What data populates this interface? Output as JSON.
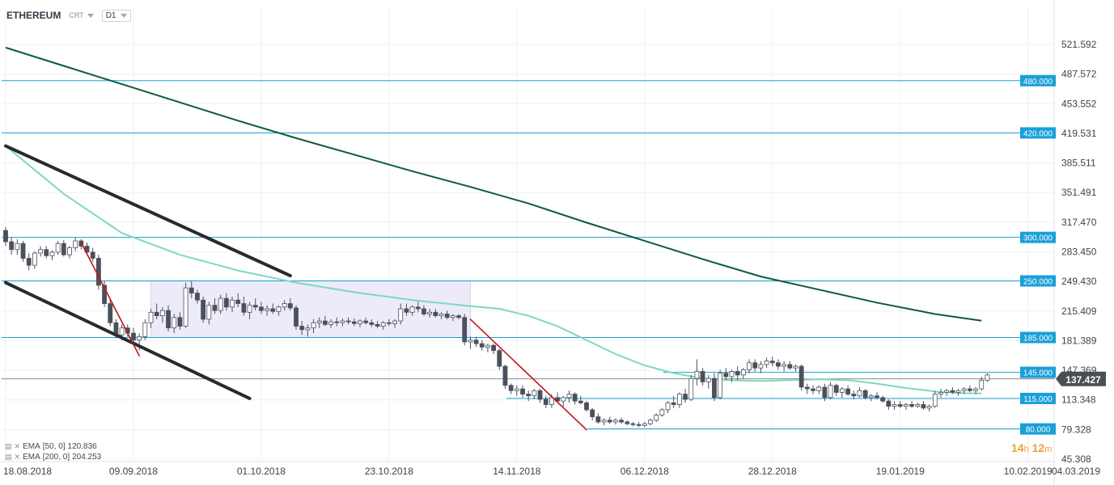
{
  "header": {
    "symbol": "ETHEREUM",
    "instrument_type": "CRT",
    "timeframe": "D1"
  },
  "countdown": {
    "hours": "14",
    "hours_unit": "h",
    "minutes": "12",
    "minutes_unit": "m"
  },
  "legend": [
    {
      "label": "EMA",
      "params": "[50, 0]",
      "value": "120.836"
    },
    {
      "label": "EMA",
      "params": "[200, 0]",
      "value": "204.253"
    }
  ],
  "chart_data": {
    "type": "candlestick",
    "title": "",
    "start_date": "2018-08-18",
    "x_ticks": [
      "18.08.2018",
      "09.09.2018",
      "01.10.2018",
      "23.10.2018",
      "14.11.2018",
      "06.12.2018",
      "28.12.2018",
      "19.01.2019",
      "10.02.2019",
      "04.03.2019"
    ],
    "y_ticks": [
      521.592,
      487.572,
      453.552,
      419.531,
      385.511,
      351.491,
      317.47,
      283.45,
      249.43,
      215.409,
      181.389,
      147.369,
      113.348,
      79.328,
      45.308
    ],
    "ylim": [
      45.308,
      555.0
    ],
    "current_price": "137.427",
    "current_price_color": "#4a4f56",
    "level_color": "#1a9fd8",
    "levels": [
      {
        "value": 480,
        "label": "480.000"
      },
      {
        "value": 420,
        "label": "420.000"
      },
      {
        "value": 300,
        "label": "300.000"
      },
      {
        "value": 250,
        "label": "250.000"
      },
      {
        "value": 185,
        "label": "185.000"
      },
      {
        "value": 145,
        "label": "145.000"
      },
      {
        "value": 115,
        "label": "115.000"
      },
      {
        "value": 80,
        "label": "80.000"
      }
    ],
    "ema50_color": "#7ed8bf",
    "ema200_color": "#0f5a3a",
    "ema50": [
      [
        0,
        405
      ],
      [
        10,
        350
      ],
      [
        20,
        305
      ],
      [
        30,
        280
      ],
      [
        40,
        262
      ],
      [
        50,
        248
      ],
      [
        60,
        237
      ],
      [
        70,
        228
      ],
      [
        80,
        221
      ],
      [
        85,
        218
      ],
      [
        90,
        210
      ],
      [
        95,
        198
      ],
      [
        100,
        182
      ],
      [
        105,
        166
      ],
      [
        110,
        153
      ],
      [
        115,
        144
      ],
      [
        120,
        138
      ],
      [
        125,
        136
      ],
      [
        130,
        135
      ],
      [
        135,
        136
      ],
      [
        140,
        137
      ],
      [
        145,
        136
      ],
      [
        150,
        132
      ],
      [
        155,
        127
      ],
      [
        160,
        123
      ],
      [
        165,
        121
      ],
      [
        168,
        120.8
      ]
    ],
    "ema200": [
      [
        0,
        518
      ],
      [
        10,
        497
      ],
      [
        20,
        476
      ],
      [
        30,
        455
      ],
      [
        40,
        434
      ],
      [
        50,
        414
      ],
      [
        60,
        395
      ],
      [
        70,
        376
      ],
      [
        80,
        358
      ],
      [
        90,
        339
      ],
      [
        100,
        317
      ],
      [
        110,
        296
      ],
      [
        120,
        275
      ],
      [
        130,
        255
      ],
      [
        140,
        240
      ],
      [
        150,
        225
      ],
      [
        160,
        212
      ],
      [
        168,
        204.3
      ]
    ],
    "support_zone": {
      "x_start": 25,
      "x_end": 80,
      "low": 185,
      "high": 250
    },
    "trendlines": [
      {
        "color": "#262b30",
        "width": 4,
        "points": [
          [
            0,
            405
          ],
          [
            49,
            256
          ]
        ]
      },
      {
        "color": "#262b30",
        "width": 4,
        "points": [
          [
            0,
            248
          ],
          [
            42,
            115
          ]
        ]
      },
      {
        "color": "#c0151c",
        "width": 1.6,
        "points": [
          [
            13,
            294
          ],
          [
            23,
            164
          ]
        ]
      },
      {
        "color": "#c0151c",
        "width": 1.6,
        "points": [
          [
            80,
            206
          ],
          [
            100,
            79
          ]
        ]
      }
    ],
    "ohlc": [
      [
        0,
        308,
        312,
        290,
        295
      ],
      [
        1,
        295,
        300,
        280,
        286
      ],
      [
        2,
        286,
        298,
        280,
        293
      ],
      [
        3,
        293,
        296,
        272,
        276
      ],
      [
        4,
        276,
        282,
        262,
        268
      ],
      [
        5,
        268,
        284,
        264,
        282
      ],
      [
        6,
        282,
        290,
        278,
        286
      ],
      [
        7,
        286,
        290,
        276,
        279
      ],
      [
        8,
        279,
        285,
        274,
        283
      ],
      [
        9,
        283,
        296,
        280,
        293
      ],
      [
        10,
        293,
        297,
        278,
        280
      ],
      [
        11,
        280,
        290,
        276,
        288
      ],
      [
        12,
        288,
        300,
        284,
        296
      ],
      [
        13,
        296,
        298,
        286,
        290
      ],
      [
        14,
        290,
        294,
        280,
        283
      ],
      [
        15,
        283,
        288,
        272,
        276
      ],
      [
        16,
        276,
        280,
        240,
        245
      ],
      [
        17,
        245,
        250,
        220,
        224
      ],
      [
        18,
        224,
        230,
        198,
        202
      ],
      [
        19,
        202,
        206,
        184,
        188
      ],
      [
        20,
        188,
        200,
        182,
        196
      ],
      [
        21,
        196,
        200,
        186,
        190
      ],
      [
        22,
        190,
        196,
        178,
        182
      ],
      [
        23,
        182,
        190,
        170,
        186
      ],
      [
        24,
        186,
        206,
        182,
        202
      ],
      [
        25,
        202,
        218,
        196,
        214
      ],
      [
        26,
        214,
        224,
        206,
        210
      ],
      [
        27,
        210,
        220,
        202,
        216
      ],
      [
        28,
        216,
        222,
        192,
        196
      ],
      [
        29,
        196,
        212,
        190,
        208
      ],
      [
        30,
        208,
        214,
        194,
        198
      ],
      [
        31,
        198,
        248,
        196,
        242
      ],
      [
        32,
        242,
        250,
        230,
        236
      ],
      [
        33,
        236,
        240,
        224,
        228
      ],
      [
        34,
        228,
        232,
        202,
        206
      ],
      [
        35,
        206,
        226,
        200,
        222
      ],
      [
        36,
        222,
        230,
        212,
        216
      ],
      [
        37,
        216,
        234,
        212,
        230
      ],
      [
        38,
        230,
        236,
        216,
        220
      ],
      [
        39,
        220,
        232,
        214,
        228
      ],
      [
        40,
        228,
        236,
        220,
        224
      ],
      [
        41,
        224,
        232,
        210,
        214
      ],
      [
        42,
        214,
        226,
        206,
        222
      ],
      [
        43,
        222,
        230,
        216,
        220
      ],
      [
        44,
        220,
        226,
        212,
        216
      ],
      [
        45,
        216,
        222,
        210,
        218
      ],
      [
        46,
        218,
        224,
        212,
        215
      ],
      [
        47,
        215,
        222,
        210,
        220
      ],
      [
        48,
        220,
        228,
        216,
        224
      ],
      [
        49,
        224,
        230,
        216,
        219
      ],
      [
        50,
        219,
        222,
        194,
        198
      ],
      [
        51,
        198,
        204,
        188,
        194
      ],
      [
        52,
        194,
        200,
        186,
        196
      ],
      [
        53,
        196,
        206,
        190,
        202
      ],
      [
        54,
        202,
        208,
        196,
        204
      ],
      [
        55,
        204,
        210,
        198,
        200
      ],
      [
        56,
        200,
        206,
        196,
        203
      ],
      [
        57,
        203,
        208,
        198,
        202
      ],
      [
        58,
        202,
        207,
        198,
        204
      ],
      [
        59,
        204,
        208,
        200,
        203
      ],
      [
        60,
        203,
        207,
        198,
        201
      ],
      [
        61,
        201,
        206,
        197,
        204
      ],
      [
        62,
        204,
        208,
        200,
        202
      ],
      [
        63,
        202,
        206,
        197,
        200
      ],
      [
        64,
        200,
        204,
        196,
        198
      ],
      [
        65,
        198,
        204,
        194,
        202
      ],
      [
        66,
        202,
        206,
        198,
        201
      ],
      [
        67,
        201,
        206,
        196,
        204
      ],
      [
        68,
        204,
        224,
        200,
        218
      ],
      [
        69,
        218,
        224,
        210,
        214
      ],
      [
        70,
        214,
        222,
        210,
        220
      ],
      [
        71,
        220,
        226,
        214,
        218
      ],
      [
        72,
        218,
        222,
        210,
        212
      ],
      [
        73,
        212,
        218,
        208,
        214
      ],
      [
        74,
        214,
        218,
        208,
        210
      ],
      [
        75,
        210,
        214,
        206,
        212
      ],
      [
        76,
        212,
        216,
        206,
        208
      ],
      [
        77,
        208,
        212,
        204,
        210
      ],
      [
        78,
        210,
        212,
        206,
        208
      ],
      [
        79,
        208,
        212,
        176,
        180
      ],
      [
        80,
        180,
        186,
        172,
        182
      ],
      [
        81,
        182,
        186,
        174,
        178
      ],
      [
        82,
        178,
        182,
        170,
        174
      ],
      [
        83,
        174,
        178,
        168,
        176
      ],
      [
        84,
        176,
        178,
        166,
        170
      ],
      [
        85,
        170,
        172,
        148,
        152
      ],
      [
        86,
        152,
        154,
        126,
        130
      ],
      [
        87,
        130,
        132,
        120,
        124
      ],
      [
        88,
        124,
        130,
        118,
        126
      ],
      [
        89,
        126,
        130,
        116,
        120
      ],
      [
        90,
        120,
        124,
        112,
        118
      ],
      [
        91,
        118,
        126,
        114,
        124
      ],
      [
        92,
        124,
        126,
        110,
        114
      ],
      [
        93,
        114,
        118,
        104,
        108
      ],
      [
        94,
        108,
        120,
        104,
        116
      ],
      [
        95,
        116,
        122,
        110,
        112
      ],
      [
        96,
        112,
        118,
        106,
        116
      ],
      [
        97,
        116,
        124,
        110,
        120
      ],
      [
        98,
        120,
        122,
        108,
        112
      ],
      [
        99,
        112,
        118,
        108,
        110
      ],
      [
        100,
        110,
        112,
        100,
        102
      ],
      [
        101,
        102,
        104,
        90,
        94
      ],
      [
        102,
        94,
        98,
        86,
        88
      ],
      [
        103,
        88,
        92,
        84,
        90
      ],
      [
        104,
        90,
        94,
        86,
        88
      ],
      [
        105,
        88,
        92,
        85,
        90
      ],
      [
        106,
        90,
        93,
        86,
        88
      ],
      [
        107,
        88,
        90,
        84,
        86
      ],
      [
        108,
        86,
        88,
        83,
        85
      ],
      [
        109,
        85,
        88,
        82,
        84
      ],
      [
        110,
        84,
        88,
        82,
        86
      ],
      [
        111,
        86,
        92,
        84,
        90
      ],
      [
        112,
        90,
        98,
        88,
        96
      ],
      [
        113,
        96,
        104,
        94,
        102
      ],
      [
        114,
        102,
        112,
        98,
        110
      ],
      [
        115,
        110,
        118,
        104,
        108
      ],
      [
        116,
        108,
        122,
        104,
        120
      ],
      [
        117,
        120,
        126,
        110,
        114
      ],
      [
        118,
        114,
        142,
        112,
        138
      ],
      [
        119,
        138,
        160,
        130,
        146
      ],
      [
        120,
        146,
        150,
        130,
        134
      ],
      [
        121,
        134,
        142,
        126,
        138
      ],
      [
        122,
        138,
        144,
        112,
        116
      ],
      [
        123,
        116,
        148,
        114,
        144
      ],
      [
        124,
        144,
        150,
        136,
        140
      ],
      [
        125,
        140,
        148,
        134,
        146
      ],
      [
        126,
        146,
        152,
        136,
        142
      ],
      [
        127,
        142,
        150,
        138,
        148
      ],
      [
        128,
        148,
        160,
        144,
        156
      ],
      [
        129,
        156,
        160,
        146,
        150
      ],
      [
        130,
        150,
        158,
        144,
        154
      ],
      [
        131,
        154,
        162,
        150,
        158
      ],
      [
        132,
        158,
        163,
        152,
        156
      ],
      [
        133,
        156,
        160,
        148,
        152
      ],
      [
        134,
        152,
        158,
        146,
        154
      ],
      [
        135,
        154,
        158,
        148,
        150
      ],
      [
        136,
        150,
        154,
        146,
        152
      ],
      [
        137,
        152,
        154,
        124,
        128
      ],
      [
        138,
        128,
        132,
        120,
        126
      ],
      [
        139,
        126,
        130,
        120,
        124
      ],
      [
        140,
        124,
        130,
        120,
        128
      ],
      [
        141,
        128,
        132,
        112,
        116
      ],
      [
        142,
        116,
        134,
        114,
        130
      ],
      [
        143,
        130,
        132,
        118,
        122
      ],
      [
        144,
        122,
        128,
        116,
        126
      ],
      [
        145,
        126,
        130,
        118,
        120
      ],
      [
        146,
        120,
        124,
        114,
        118
      ],
      [
        147,
        118,
        128,
        116,
        124
      ],
      [
        148,
        124,
        126,
        114,
        116
      ],
      [
        149,
        116,
        120,
        112,
        118
      ],
      [
        150,
        118,
        122,
        114,
        116
      ],
      [
        151,
        116,
        118,
        110,
        112
      ],
      [
        152,
        112,
        114,
        102,
        106
      ],
      [
        153,
        106,
        112,
        102,
        108
      ],
      [
        154,
        108,
        112,
        104,
        106
      ],
      [
        155,
        106,
        110,
        102,
        108
      ],
      [
        156,
        108,
        112,
        104,
        106
      ],
      [
        157,
        106,
        110,
        104,
        108
      ],
      [
        158,
        108,
        112,
        102,
        104
      ],
      [
        159,
        104,
        108,
        100,
        106
      ],
      [
        160,
        106,
        124,
        104,
        120
      ],
      [
        161,
        120,
        126,
        116,
        122
      ],
      [
        162,
        122,
        126,
        118,
        124
      ],
      [
        163,
        124,
        128,
        120,
        122
      ],
      [
        164,
        122,
        126,
        118,
        124
      ],
      [
        165,
        124,
        128,
        120,
        126
      ],
      [
        166,
        126,
        130,
        122,
        124
      ],
      [
        167,
        124,
        128,
        120,
        126
      ],
      [
        168,
        126,
        140,
        124,
        136
      ],
      [
        169,
        136,
        144,
        134,
        142
      ]
    ]
  }
}
